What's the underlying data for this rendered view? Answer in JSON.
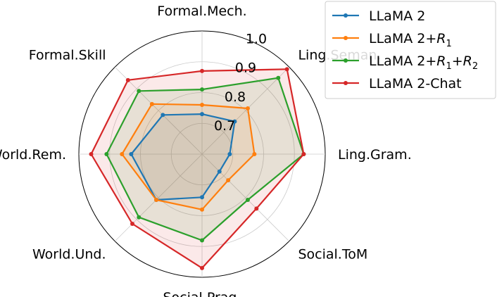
{
  "chart_data": {
    "type": "radar",
    "title": "",
    "axes": [
      "Formal.Mech.",
      "Ling.Seman.",
      "Ling.Gram.",
      "Social.ToM",
      "Social.Prag.",
      "World.Und.",
      "World.Rem.",
      "Formal.Skill"
    ],
    "rlim": [
      0.6,
      1.0
    ],
    "rticks": [
      0.7,
      0.8,
      0.9,
      1.0
    ],
    "rtick_labels": [
      "0.7",
      "0.8",
      "0.9",
      "1.0"
    ],
    "grid": true,
    "legend_position": "top-right",
    "series": [
      {
        "name": "LLaMA 2",
        "name_parts": [
          [
            "LLaMA 2",
            ""
          ]
        ],
        "color": "#1f77b4",
        "values": [
          0.73,
          0.75,
          0.69,
          0.68,
          0.74,
          0.81,
          0.83,
          0.78
        ]
      },
      {
        "name": "LLaMA 2+R1",
        "name_parts": [
          [
            "LLaMA 2+",
            ""
          ],
          [
            "R",
            "1"
          ]
        ],
        "color": "#ff7f0e",
        "values": [
          0.76,
          0.81,
          0.77,
          0.72,
          0.78,
          0.81,
          0.86,
          0.83
        ]
      },
      {
        "name": "LLaMA 2+R1+R2",
        "name_parts": [
          [
            "LLaMA 2+",
            ""
          ],
          [
            "R",
            "1"
          ],
          [
            "+",
            ""
          ],
          [
            "R",
            "2"
          ]
        ],
        "color": "#2ca02c",
        "values": [
          0.81,
          0.95,
          0.93,
          0.81,
          0.88,
          0.89,
          0.91,
          0.89
        ]
      },
      {
        "name": "LLaMA 2-Chat",
        "name_parts": [
          [
            "LLaMA 2-Chat",
            ""
          ]
        ],
        "color": "#d62728",
        "values": [
          0.87,
          0.99,
          0.93,
          0.85,
          0.97,
          0.92,
          0.96,
          0.94
        ]
      }
    ]
  }
}
